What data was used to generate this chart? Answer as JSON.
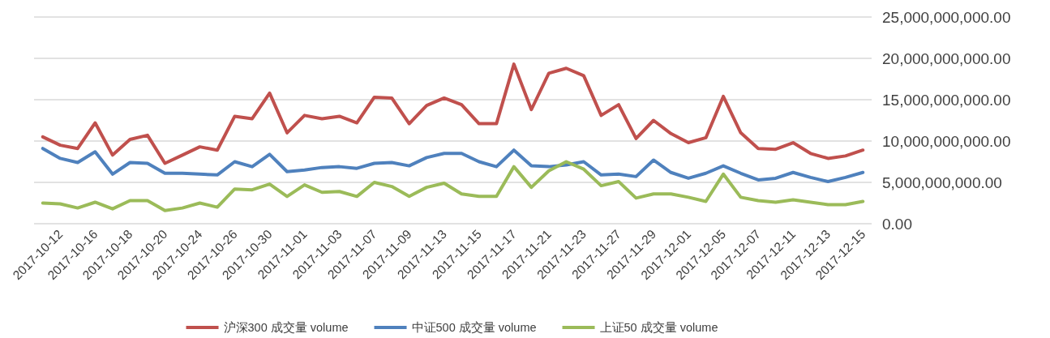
{
  "chart_data": {
    "type": "line",
    "categories": [
      null,
      "2017-10-12",
      null,
      "2017-10-16",
      null,
      "2017-10-18",
      null,
      "2017-10-20",
      null,
      "2017-10-24",
      null,
      "2017-10-26",
      null,
      "2017-10-30",
      null,
      "2017-11-01",
      null,
      "2017-11-03",
      null,
      "2017-11-07",
      null,
      "2017-11-09",
      null,
      "2017-11-13",
      null,
      "2017-11-15",
      null,
      "2017-11-17",
      null,
      "2017-11-21",
      null,
      "2017-11-23",
      null,
      "2017-11-27",
      null,
      "2017-11-29",
      null,
      "2017-12-01",
      null,
      "2017-12-05",
      null,
      "2017-12-07",
      null,
      "2017-12-11",
      null,
      "2017-12-13",
      null,
      "2017-12-15"
    ],
    "series": [
      {
        "name": "沪深300 成交量 volume",
        "color": "#c0504d",
        "values": [
          10500000000.0,
          9500000000.0,
          9100000000.0,
          12200000000.0,
          8300000000.0,
          10200000000.0,
          10700000000.0,
          7300000000.0,
          8300000000.0,
          9300000000.0,
          8900000000.0,
          13000000000.0,
          12700000000.0,
          15800000000.0,
          11000000000.0,
          13100000000.0,
          12700000000.0,
          13000000000.0,
          12200000000.0,
          15300000000.0,
          15200000000.0,
          12100000000.0,
          14300000000.0,
          15200000000.0,
          14400000000.0,
          12100000000.0,
          12100000000.0,
          19300000000.0,
          13800000000.0,
          18200000000.0,
          18800000000.0,
          17900000000.0,
          13100000000.0,
          14400000000.0,
          10300000000.0,
          12500000000.0,
          10900000000.0,
          9800000000.0,
          10400000000.0,
          15400000000.0,
          11000000000.0,
          9100000000.0,
          9000000000.0,
          9800000000.0,
          8500000000.0,
          7900000000.0,
          8200000000.0,
          8900000000.0
        ]
      },
      {
        "name": "中证500 成交量 volume",
        "color": "#4f81bd",
        "values": [
          9100000000.0,
          7900000000.0,
          7400000000.0,
          8700000000.0,
          6000000000.0,
          7400000000.0,
          7300000000.0,
          6100000000.0,
          6100000000.0,
          6000000000.0,
          5900000000.0,
          7500000000.0,
          6900000000.0,
          8400000000.0,
          6300000000.0,
          6500000000.0,
          6800000000.0,
          6900000000.0,
          6700000000.0,
          7300000000.0,
          7400000000.0,
          7000000000.0,
          8000000000.0,
          8500000000.0,
          8500000000.0,
          7500000000.0,
          6900000000.0,
          8900000000.0,
          7000000000.0,
          6900000000.0,
          7100000000.0,
          7500000000.0,
          5900000000.0,
          6000000000.0,
          5700000000.0,
          7700000000.0,
          6200000000.0,
          5500000000.0,
          6100000000.0,
          7000000000.0,
          6100000000.0,
          5300000000.0,
          5500000000.0,
          6200000000.0,
          5600000000.0,
          5100000000.0,
          5600000000.0,
          6200000000.0
        ]
      },
      {
        "name": "上证50 成交量 volume",
        "color": "#9bbb59",
        "values": [
          2500000000.0,
          2400000000.0,
          1900000000.0,
          2600000000.0,
          1800000000.0,
          2800000000.0,
          2800000000.0,
          1600000000.0,
          1900000000.0,
          2500000000.0,
          2000000000.0,
          4200000000.0,
          4100000000.0,
          4800000000.0,
          3300000000.0,
          4700000000.0,
          3800000000.0,
          3900000000.0,
          3300000000.0,
          5000000000.0,
          4500000000.0,
          3300000000.0,
          4400000000.0,
          4900000000.0,
          3600000000.0,
          3300000000.0,
          3300000000.0,
          6900000000.0,
          4400000000.0,
          6400000000.0,
          7500000000.0,
          6600000000.0,
          4600000000.0,
          5100000000.0,
          3100000000.0,
          3600000000.0,
          3600000000.0,
          3200000000.0,
          2700000000.0,
          6000000000.0,
          3200000000.0,
          2800000000.0,
          2600000000.0,
          2900000000.0,
          2600000000.0,
          2300000000.0,
          2300000000.0,
          2700000000.0
        ]
      }
    ],
    "ylim": [
      0,
      25000000000
    ],
    "yticks": [
      {
        "value": 0,
        "label": "0.00"
      },
      {
        "value": 5000000000,
        "label": "5,000,000,000.00"
      },
      {
        "value": 10000000000,
        "label": "10,000,000,000.00"
      },
      {
        "value": 15000000000,
        "label": "15,000,000,000.00"
      },
      {
        "value": 20000000000,
        "label": "20,000,000,000.00"
      },
      {
        "value": 25000000000,
        "label": "25,000,000,000.00"
      }
    ],
    "grid": "y",
    "legend": "bottom",
    "marker": "none",
    "line_style": "solid"
  }
}
